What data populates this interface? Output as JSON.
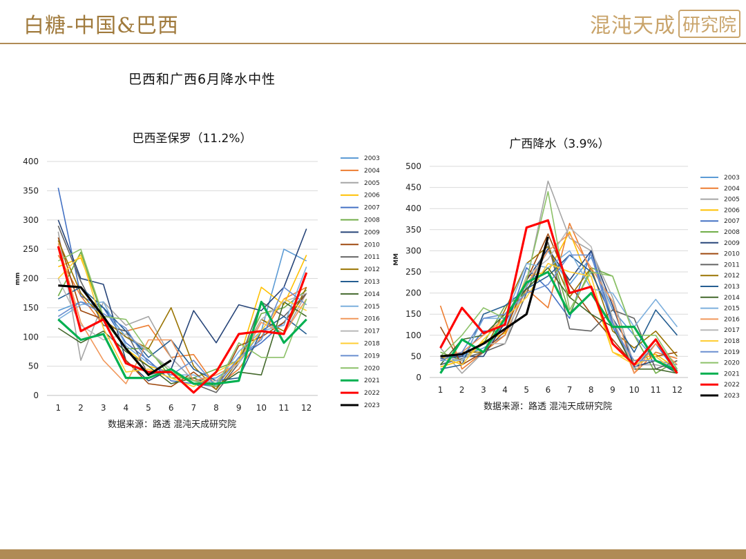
{
  "header": {
    "title": "白糖-中国&巴西",
    "logo_text": "混沌天成",
    "logo_box": "研究院"
  },
  "main_title": "巴西和广西6月降水中性",
  "source_left": "数据来源：路透 混沌天成研究院",
  "source_right": "数据来源：路透 混沌天成研究院",
  "series_colors": {
    "2003": "#5b9bd5",
    "2004": "#ed7d31",
    "2005": "#a5a5a5",
    "2006": "#ffc000",
    "2007": "#4472c4",
    "2008": "#70ad47",
    "2009": "#264478",
    "2010": "#9e480e",
    "2011": "#636363",
    "2012": "#997300",
    "2013": "#255e91",
    "2014": "#43682b",
    "2015": "#7cafdd",
    "2016": "#f1975a",
    "2017": "#b7b7b7",
    "2018": "#ffcd33",
    "2019": "#698ed0",
    "2020": "#8cc168",
    "2021": "#00b050",
    "2022": "#ff0000",
    "2023": "#000000"
  },
  "chart_data": [
    {
      "type": "line",
      "title": "巴西圣保罗（11.2%）",
      "xlabel": "",
      "ylabel": "mm",
      "ylim": [
        0,
        400
      ],
      "yticks": [
        0,
        50,
        100,
        150,
        200,
        250,
        300,
        350,
        400
      ],
      "categories": [
        "1",
        "2",
        "3",
        "4",
        "5",
        "6",
        "7",
        "8",
        "9",
        "10",
        "11",
        "12"
      ],
      "legend_position": "right",
      "series": [
        {
          "name": "2003",
          "values": [
            145,
            160,
            150,
            100,
            75,
            40,
            25,
            30,
            55,
            110,
            250,
            230
          ]
        },
        {
          "name": "2004",
          "values": [
            240,
            170,
            120,
            110,
            120,
            65,
            70,
            15,
            45,
            100,
            165,
            185
          ]
        },
        {
          "name": "2005",
          "values": [
            280,
            60,
            160,
            120,
            135,
            65,
            25,
            20,
            60,
            130,
            105,
            175
          ]
        },
        {
          "name": "2006",
          "values": [
            220,
            235,
            135,
            80,
            50,
            40,
            20,
            25,
            60,
            185,
            155,
            240
          ]
        },
        {
          "name": "2007",
          "values": [
            355,
            170,
            150,
            90,
            60,
            25,
            20,
            15,
            65,
            90,
            125,
            175
          ]
        },
        {
          "name": "2008",
          "values": [
            170,
            245,
            130,
            80,
            80,
            30,
            30,
            45,
            60,
            140,
            150,
            180
          ]
        },
        {
          "name": "2009",
          "values": [
            300,
            200,
            190,
            60,
            25,
            45,
            145,
            90,
            155,
            145,
            185,
            285
          ]
        },
        {
          "name": "2010",
          "values": [
            270,
            145,
            130,
            60,
            20,
            15,
            40,
            10,
            85,
            100,
            125,
            175
          ]
        },
        {
          "name": "2011",
          "values": [
            290,
            195,
            120,
            110,
            35,
            45,
            20,
            5,
            55,
            160,
            135,
            175
          ]
        },
        {
          "name": "2012",
          "values": [
            265,
            175,
            130,
            100,
            80,
            150,
            50,
            10,
            60,
            130,
            110,
            185
          ]
        },
        {
          "name": "2013",
          "values": [
            165,
            185,
            150,
            110,
            65,
            95,
            45,
            25,
            30,
            110,
            135,
            105
          ]
        },
        {
          "name": "2014",
          "values": [
            115,
            90,
            110,
            75,
            50,
            20,
            30,
            15,
            40,
            35,
            160,
            135
          ]
        },
        {
          "name": "2015",
          "values": [
            130,
            155,
            160,
            85,
            55,
            35,
            35,
            20,
            75,
            110,
            120,
            220
          ]
        },
        {
          "name": "2016",
          "values": [
            260,
            125,
            60,
            20,
            95,
            95,
            25,
            35,
            55,
            125,
            105,
            165
          ]
        },
        {
          "name": "2017",
          "values": [
            200,
            120,
            95,
            105,
            75,
            45,
            20,
            25,
            55,
            130,
            160,
            175
          ]
        },
        {
          "name": "2018",
          "values": [
            200,
            240,
            115,
            40,
            45,
            30,
            15,
            40,
            60,
            110,
            165,
            145
          ]
        },
        {
          "name": "2019",
          "values": [
            135,
            160,
            140,
            115,
            55,
            35,
            60,
            15,
            65,
            95,
            185,
            155
          ]
        },
        {
          "name": "2020",
          "values": [
            230,
            250,
            135,
            130,
            75,
            40,
            25,
            15,
            90,
            65,
            65,
            165
          ]
        },
        {
          "name": "2021",
          "values": [
            130,
            95,
            105,
            30,
            30,
            45,
            20,
            20,
            25,
            160,
            90,
            130
          ]
        },
        {
          "name": "2022",
          "values": [
            255,
            110,
            130,
            55,
            40,
            40,
            5,
            40,
            105,
            110,
            105,
            210
          ]
        },
        {
          "name": "2023",
          "values": [
            188,
            185,
            135,
            80,
            35,
            60,
            null,
            null,
            null,
            null,
            null,
            null
          ]
        }
      ]
    },
    {
      "type": "line",
      "title": "广西降水（3.9%）",
      "xlabel": "",
      "ylabel": "MM",
      "ylim": [
        0,
        500
      ],
      "yticks": [
        0,
        50,
        100,
        150,
        200,
        250,
        300,
        350,
        400,
        450,
        500
      ],
      "categories": [
        "1",
        "2",
        "3",
        "4",
        "5",
        "6",
        "7",
        "8",
        "9",
        "10",
        "11",
        "12"
      ],
      "legend_position": "right",
      "series": [
        {
          "name": "2003",
          "values": [
            30,
            50,
            70,
            100,
            215,
            300,
            220,
            285,
            160,
            100,
            40,
            30
          ]
        },
        {
          "name": "2004",
          "values": [
            170,
            20,
            60,
            100,
            210,
            165,
            365,
            250,
            140,
            10,
            60,
            45
          ]
        },
        {
          "name": "2005",
          "values": [
            70,
            10,
            60,
            130,
            225,
            465,
            330,
            300,
            190,
            30,
            30,
            20
          ]
        },
        {
          "name": "2006",
          "values": [
            25,
            40,
            85,
            105,
            240,
            250,
            345,
            215,
            60,
            40,
            55,
            20
          ]
        },
        {
          "name": "2007",
          "values": [
            50,
            50,
            110,
            110,
            260,
            210,
            140,
            300,
            130,
            20,
            80,
            10
          ]
        },
        {
          "name": "2008",
          "values": [
            60,
            40,
            80,
            170,
            200,
            320,
            150,
            260,
            240,
            100,
            10,
            40
          ]
        },
        {
          "name": "2009",
          "values": [
            45,
            50,
            50,
            130,
            230,
            305,
            230,
            300,
            170,
            25,
            40,
            10
          ]
        },
        {
          "name": "2010",
          "values": [
            120,
            30,
            60,
            110,
            230,
            340,
            220,
            150,
            90,
            30,
            50,
            60
          ]
        },
        {
          "name": "2011",
          "values": [
            30,
            45,
            60,
            80,
            200,
            320,
            115,
            110,
            160,
            140,
            20,
            40
          ]
        },
        {
          "name": "2012",
          "values": [
            40,
            60,
            60,
            160,
            270,
            310,
            190,
            260,
            110,
            70,
            110,
            50
          ]
        },
        {
          "name": "2013",
          "values": [
            20,
            30,
            150,
            170,
            210,
            240,
            290,
            250,
            140,
            60,
            160,
            100
          ]
        },
        {
          "name": "2014",
          "values": [
            30,
            90,
            100,
            150,
            210,
            260,
            190,
            150,
            120,
            20,
            20,
            10
          ]
        },
        {
          "name": "2015",
          "values": [
            40,
            40,
            140,
            140,
            270,
            260,
            300,
            210,
            200,
            120,
            185,
            120
          ]
        },
        {
          "name": "2016",
          "values": [
            50,
            60,
            100,
            140,
            220,
            300,
            340,
            260,
            180,
            10,
            80,
            30
          ]
        },
        {
          "name": "2017",
          "values": [
            50,
            40,
            80,
            80,
            240,
            280,
            355,
            310,
            140,
            20,
            90,
            20
          ]
        },
        {
          "name": "2018",
          "values": [
            50,
            30,
            90,
            140,
            190,
            270,
            250,
            240,
            60,
            30,
            50,
            10
          ]
        },
        {
          "name": "2019",
          "values": [
            40,
            60,
            140,
            150,
            200,
            220,
            290,
            290,
            120,
            40,
            40,
            20
          ]
        },
        {
          "name": "2020",
          "values": [
            50,
            100,
            165,
            140,
            230,
            440,
            160,
            250,
            240,
            100,
            100,
            20
          ]
        },
        {
          "name": "2021",
          "values": [
            10,
            90,
            60,
            140,
            225,
            250,
            150,
            200,
            120,
            120,
            40,
            15
          ]
        },
        {
          "name": "2022",
          "values": [
            70,
            165,
            105,
            125,
            355,
            372,
            200,
            215,
            80,
            30,
            90,
            10
          ]
        },
        {
          "name": "2023",
          "values": [
            50,
            55,
            80,
            115,
            150,
            333,
            null,
            null,
            null,
            null,
            null,
            null
          ]
        }
      ]
    }
  ]
}
